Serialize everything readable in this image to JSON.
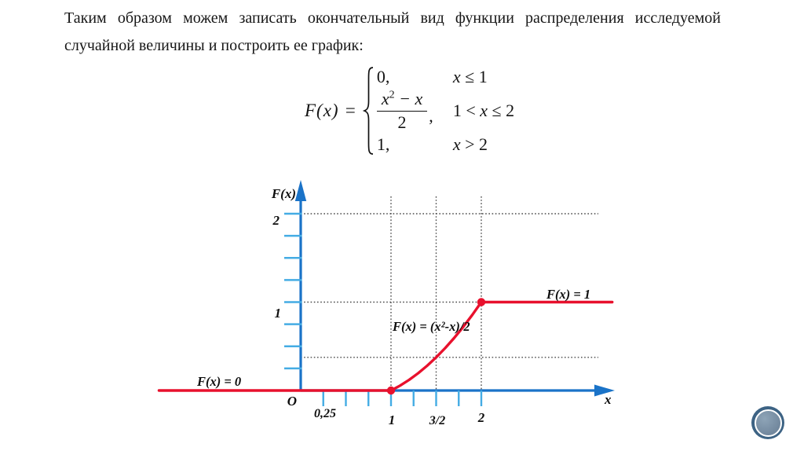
{
  "slide": {
    "paragraph_line1": "Таким образом можем записать окончательный вид функции распределения исследуемой",
    "paragraph_line2": "случайной величины и построить ее график:"
  },
  "formula": {
    "lhs": "F(x) =",
    "cases": [
      {
        "value": "0,",
        "cond_pre": "",
        "cond_var": "x",
        "cond_rest": " ≤ 1"
      },
      {
        "num_base": "x",
        "num_sup": "2",
        "num_rest": " − x",
        "denominator": "2",
        "comma": ",",
        "cond_pre": "1 < ",
        "cond_var": "x",
        "cond_rest": " ≤ 2"
      },
      {
        "value": "1,",
        "cond_pre": "",
        "cond_var": "x",
        "cond_rest": " > 2"
      }
    ]
  },
  "graph": {
    "labels": {
      "y_axis_title": "F(x)",
      "y_tick_2": "2",
      "y_tick_1": "1",
      "origin": "O",
      "x_tick_025": "0,25",
      "x_tick_1": "1",
      "x_tick_32": "3/2",
      "x_tick_2": "2",
      "x_axis_title": "x",
      "segment_zero": "F(x) = 0",
      "segment_curve": "F(x) = (x²-x)/2",
      "segment_one": "F(x) = 1"
    },
    "colors": {
      "axis": "#1a73c8",
      "tick": "#44ace4",
      "curve": "#e8112d",
      "grid": "#4a4a4a"
    }
  },
  "badge": {
    "colors": {
      "outer": "#3d6384",
      "inner": "#72889e"
    }
  },
  "chart_data": {
    "type": "line",
    "title": "",
    "xlabel": "x",
    "ylabel": "F(x)",
    "xlim": [
      -1.6,
      3.5
    ],
    "ylim": [
      0,
      2.4
    ],
    "x_ticks": [
      0.25,
      0.5,
      0.75,
      1,
      1.25,
      1.5,
      1.75,
      2
    ],
    "x_tick_labels": [
      "0,25",
      "1",
      "3/2",
      "2"
    ],
    "y_ticks": [
      0.25,
      0.5,
      0.75,
      1,
      1.25,
      1.5,
      1.75,
      2
    ],
    "y_tick_labels": [
      "1",
      "2"
    ],
    "gridlines": {
      "style": "dotted",
      "vertical_x": [
        1,
        1.5,
        2
      ],
      "horizontal_y": [
        0.375,
        1,
        2
      ]
    },
    "legend_position": "none",
    "series": [
      {
        "name": "F(x) = 0",
        "x": [
          -1.57,
          1
        ],
        "y": [
          0,
          0
        ]
      },
      {
        "name": "F(x) = (x²-x)/2",
        "x": [
          1,
          1.1,
          1.2,
          1.3,
          1.4,
          1.5,
          1.6,
          1.7,
          1.8,
          1.9,
          2
        ],
        "y": [
          0,
          0.055,
          0.12,
          0.195,
          0.28,
          0.375,
          0.48,
          0.595,
          0.72,
          0.855,
          1
        ]
      },
      {
        "name": "F(x) = 1",
        "x": [
          2,
          3.45
        ],
        "y": [
          1,
          1
        ]
      }
    ],
    "points": [
      {
        "x": 1,
        "y": 0
      },
      {
        "x": 2,
        "y": 1
      }
    ],
    "annotations": [
      "F(x) = 0",
      "F(x) = (x²-x)/2",
      "F(x) = 1"
    ]
  }
}
